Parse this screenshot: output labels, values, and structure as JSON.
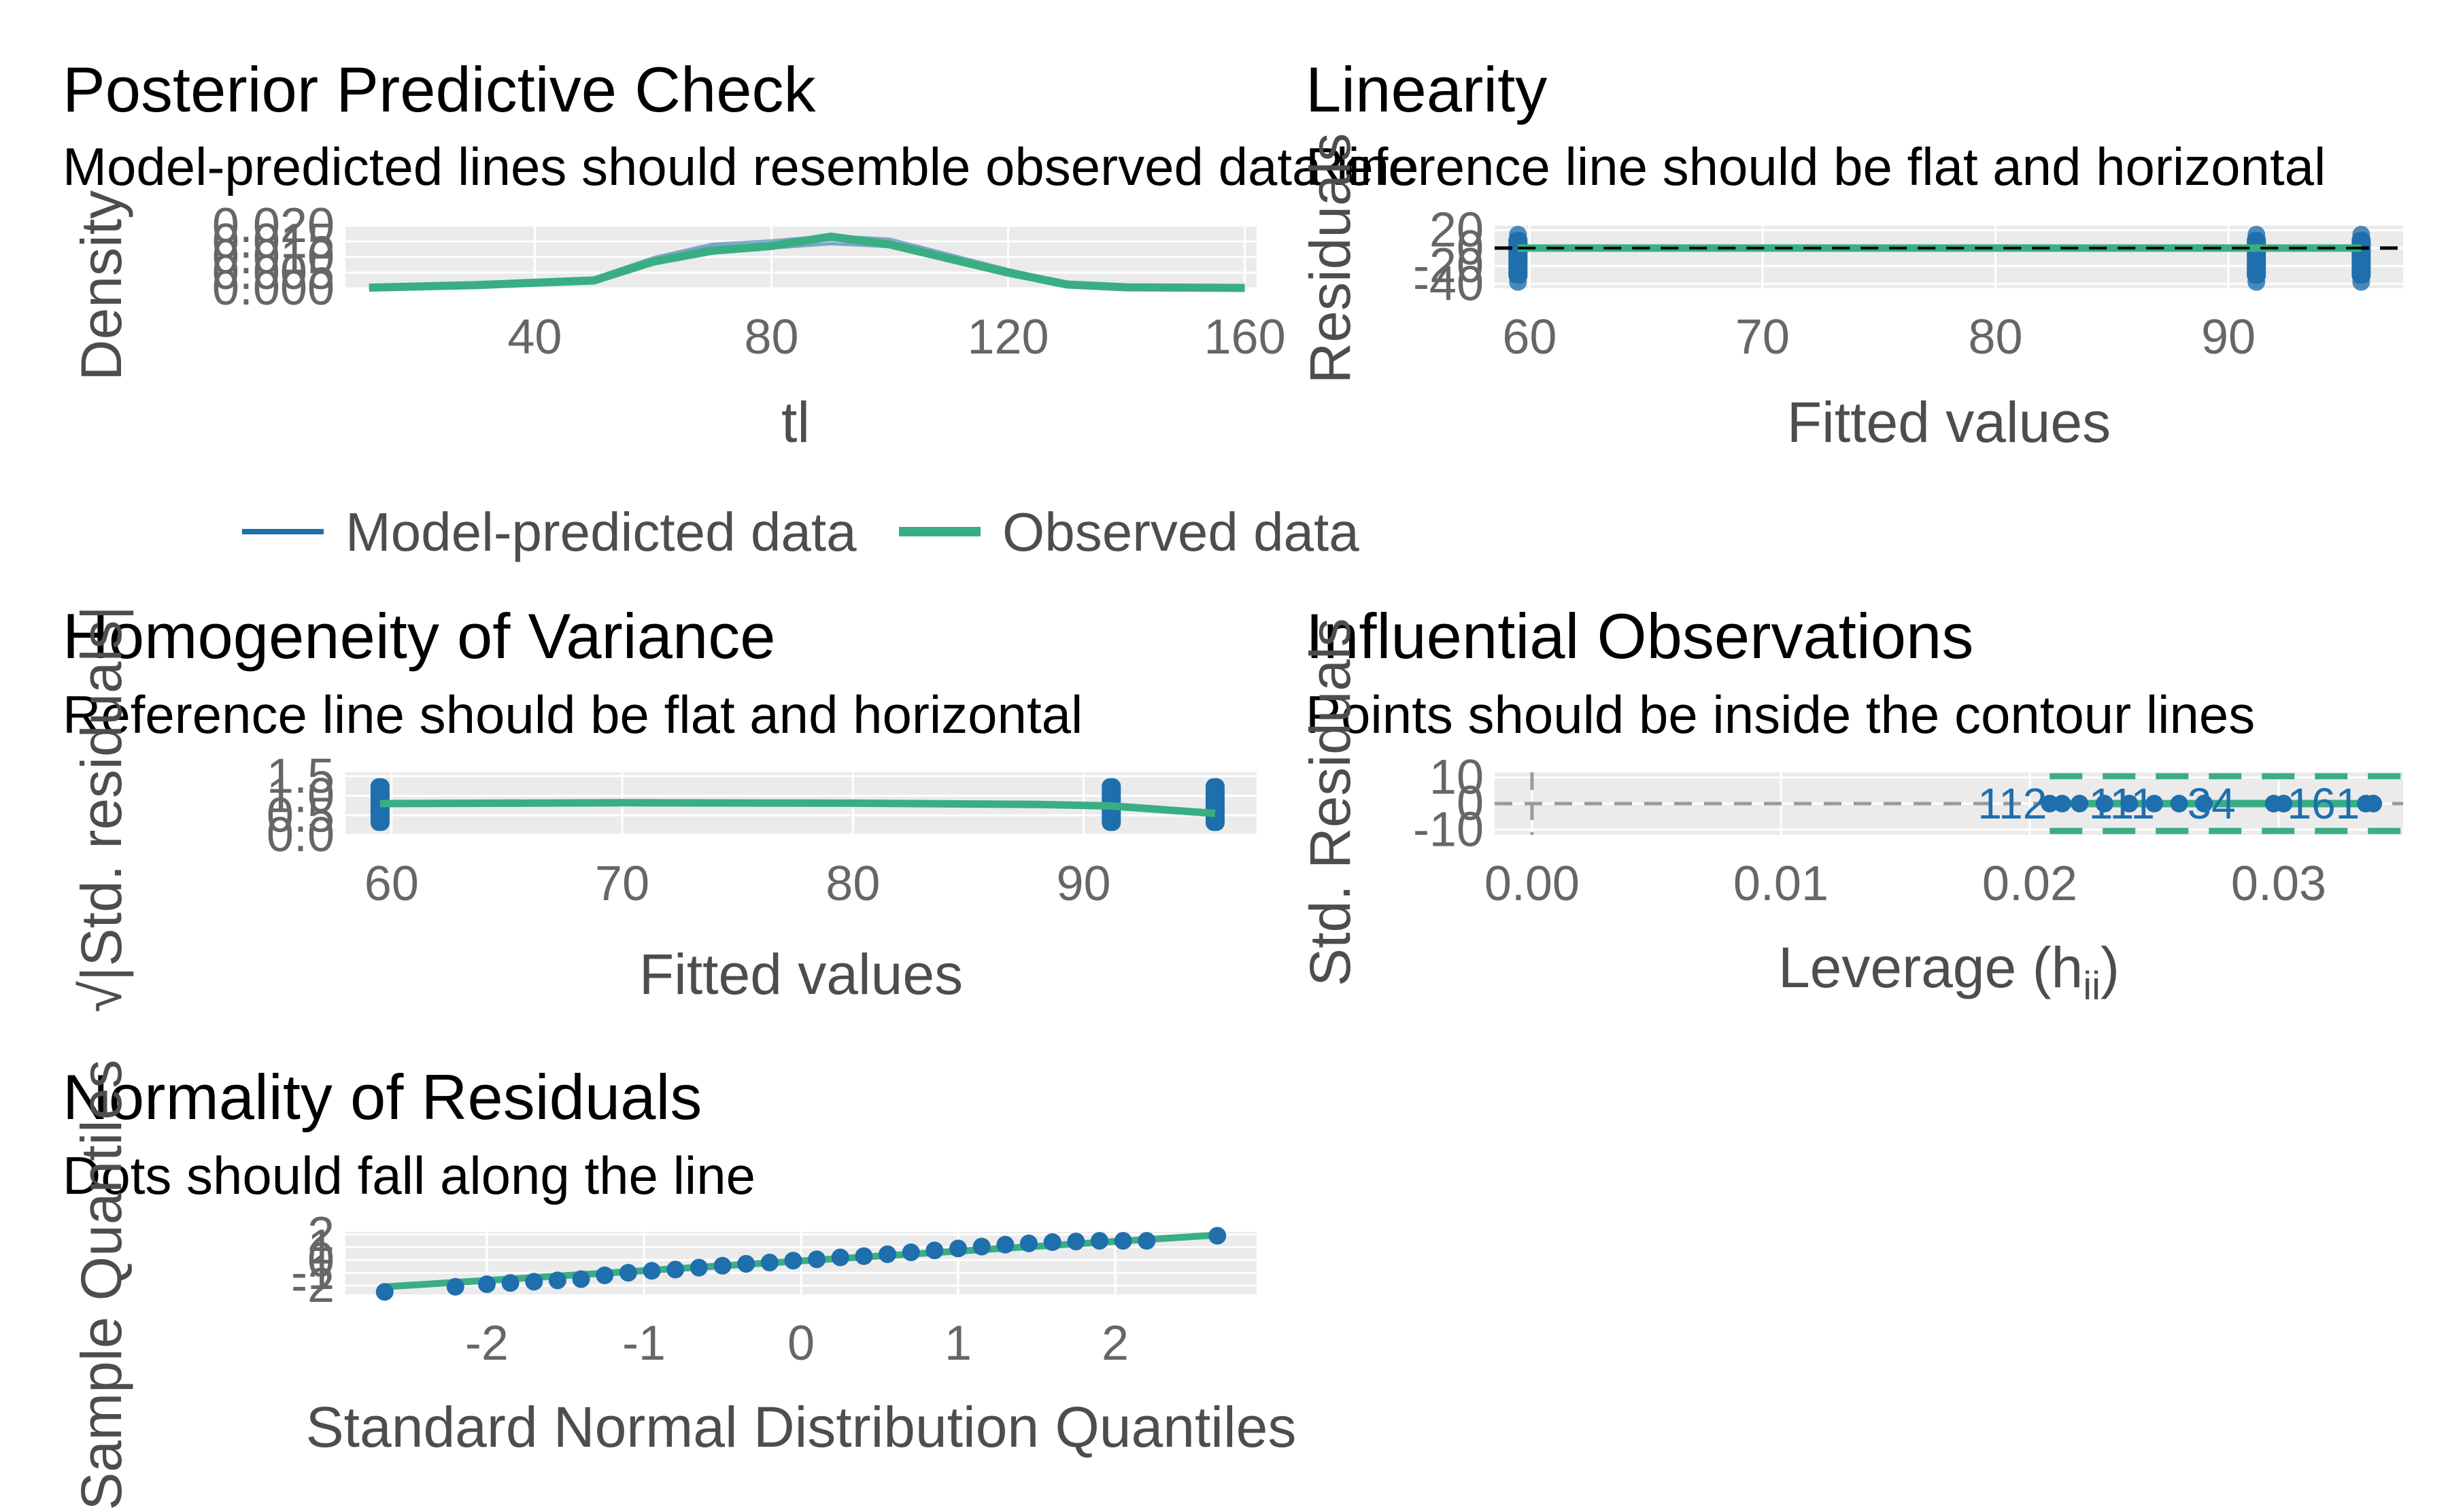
{
  "colors": {
    "blue": "#1f6fad",
    "green": "#3aae83",
    "grid": "#e6e6e6",
    "panel": "#ebebeb",
    "ref": "#000000",
    "contour": "#3aae83"
  },
  "chart_data": [
    {
      "id": "ppc",
      "type": "line",
      "title": "Posterior Predictive Check",
      "subtitle": "Model-predicted lines should resemble observed data line",
      "xlabel": "tl",
      "ylabel": "Density",
      "xlim": [
        8,
        162
      ],
      "ylim": [
        0,
        0.02
      ],
      "xticks": [
        40,
        80,
        120,
        160
      ],
      "yticks": [
        "0.000",
        "0.005",
        "0.010",
        "0.015",
        "0.020"
      ],
      "grid": true,
      "legend": {
        "position": "bottom",
        "entries": [
          "Model-predicted data",
          "Observed data"
        ]
      },
      "series": [
        {
          "name": "Model-predicted data",
          "x": [
            12,
            30,
            50,
            60,
            70,
            80,
            90,
            100,
            110,
            120,
            130,
            140,
            160
          ],
          "y": [
            0.0002,
            0.0012,
            0.003,
            0.009,
            0.013,
            0.014,
            0.0155,
            0.0145,
            0.01,
            0.0055,
            0.0015,
            0.0003,
            0.0001
          ]
        },
        {
          "name": "Observed data",
          "x": [
            12,
            30,
            50,
            60,
            70,
            80,
            90,
            100,
            110,
            120,
            130,
            140,
            160
          ],
          "y": [
            0.0002,
            0.001,
            0.0025,
            0.0085,
            0.012,
            0.0135,
            0.0165,
            0.014,
            0.0095,
            0.005,
            0.0012,
            0.0003,
            0.0001
          ]
        }
      ]
    },
    {
      "id": "linearity",
      "type": "scatter",
      "title": "Linearity",
      "subtitle": "Reference line should be flat and horizontal",
      "xlabel": "Fitted values",
      "ylabel": "Residuals",
      "xlim": [
        58.5,
        97.5
      ],
      "ylim": [
        -45,
        25
      ],
      "xticks": [
        60,
        70,
        80,
        90
      ],
      "yticks": [
        "-40",
        "-20",
        "0",
        "20"
      ],
      "grid": true,
      "groups": [
        59.5,
        91.2,
        95.7
      ],
      "ref_y": 0
    },
    {
      "id": "homogeneity",
      "type": "scatter",
      "title": "Homogeneity of Variance",
      "subtitle": "Reference line should be flat and horizontal",
      "xlabel": "Fitted values",
      "ylabel": "√|Std. residuals|",
      "xlim": [
        58,
        97.5
      ],
      "ylim": [
        0,
        1.6
      ],
      "xticks": [
        60,
        70,
        80,
        90
      ],
      "yticks": [
        "0.0",
        "0.5",
        "1.0",
        "1.5"
      ],
      "grid": true,
      "groups": [
        59.5,
        91.2,
        95.7
      ],
      "smooth": {
        "x": [
          59.5,
          70,
          80,
          88,
          91.2,
          95.7
        ],
        "y": [
          0.8,
          0.82,
          0.81,
          0.78,
          0.74,
          0.55
        ]
      }
    },
    {
      "id": "influence",
      "type": "scatter",
      "title": "Influential Observations",
      "subtitle": "Points should be inside the contour lines",
      "xlabel": "Leverage (h",
      "xlabel_sub": "ii",
      "xlabel_end": ")",
      "ylabel": "Std. Residuals",
      "xlim": [
        -0.0015,
        0.035
      ],
      "ylim": [
        -12,
        12
      ],
      "xticks": [
        "0.00",
        "0.01",
        "0.02",
        "0.03"
      ],
      "xtick_vals": [
        0,
        0.01,
        0.02,
        0.03
      ],
      "yticks": [
        "-10",
        "0",
        "10"
      ],
      "ytick_vals": [
        -10,
        0,
        10
      ],
      "grid": true,
      "points_x": [
        0.0208,
        0.0213,
        0.022,
        0.023,
        0.024,
        0.025,
        0.026,
        0.027,
        0.0298,
        0.0302,
        0.0335,
        0.0338
      ],
      "labels": [
        {
          "text": "112",
          "x": 0.0193,
          "y": 0
        },
        {
          "text": "111",
          "x": 0.0237,
          "y": 0
        },
        {
          "text": "34",
          "x": 0.0273,
          "y": 0
        },
        {
          "text": "161",
          "x": 0.0318,
          "y": 0
        }
      ]
    },
    {
      "id": "normality",
      "type": "scatter",
      "title": "Normality of Residuals",
      "subtitle": "Dots should fall along the line",
      "xlabel": "Standard Normal Distribution Quantiles",
      "ylabel": "Sample Quantiles",
      "xlim": [
        -2.9,
        2.9
      ],
      "ylim": [
        -2.7,
        2.2
      ],
      "xticks": [
        "-2",
        "-1",
        "0",
        "1",
        "2"
      ],
      "xtick_vals": [
        -2,
        -1,
        0,
        1,
        2
      ],
      "yticks": [
        "-2",
        "-1",
        "0",
        "1",
        "2"
      ],
      "ytick_vals": [
        -2,
        -1,
        0,
        1,
        2
      ],
      "grid": true,
      "points": [
        [
          -2.65,
          -2.5
        ],
        [
          -2.2,
          -2.1
        ],
        [
          -2.0,
          -1.9
        ],
        [
          -1.85,
          -1.8
        ],
        [
          -1.7,
          -1.7
        ],
        [
          -1.55,
          -1.6
        ],
        [
          -1.4,
          -1.5
        ],
        [
          -1.25,
          -1.2
        ],
        [
          -1.1,
          -1.0
        ],
        [
          -0.95,
          -0.85
        ],
        [
          -0.8,
          -0.75
        ],
        [
          -0.65,
          -0.6
        ],
        [
          -0.5,
          -0.45
        ],
        [
          -0.35,
          -0.3
        ],
        [
          -0.2,
          -0.2
        ],
        [
          -0.05,
          -0.05
        ],
        [
          0.1,
          0.05
        ],
        [
          0.25,
          0.2
        ],
        [
          0.4,
          0.3
        ],
        [
          0.55,
          0.45
        ],
        [
          0.7,
          0.6
        ],
        [
          0.85,
          0.75
        ],
        [
          1.0,
          0.9
        ],
        [
          1.15,
          1.05
        ],
        [
          1.3,
          1.2
        ],
        [
          1.45,
          1.3
        ],
        [
          1.6,
          1.4
        ],
        [
          1.75,
          1.45
        ],
        [
          1.9,
          1.5
        ],
        [
          2.05,
          1.5
        ],
        [
          2.2,
          1.5
        ],
        [
          2.65,
          1.9
        ]
      ],
      "line": {
        "x": [
          -2.65,
          2.65
        ],
        "y": [
          -2.1,
          1.95
        ]
      }
    }
  ]
}
